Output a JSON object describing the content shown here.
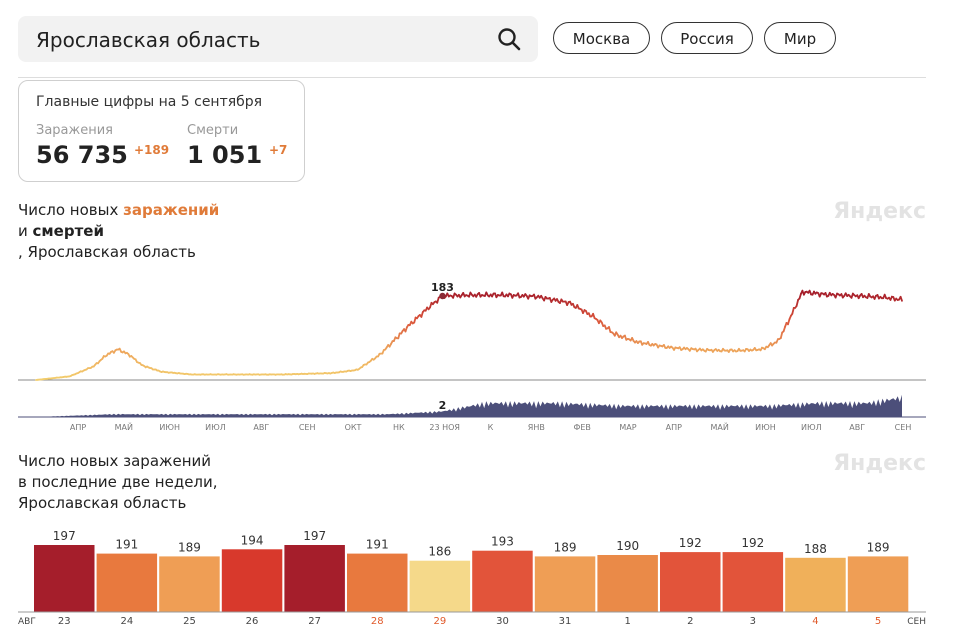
{
  "search": {
    "value": "Ярославская область"
  },
  "region_chips": [
    "Москва",
    "Россия",
    "Мир"
  ],
  "summary": {
    "title": "Главные цифры на 5 сентября",
    "infections_label": "Заражения",
    "infections_value": "56 735",
    "infections_delta": "+189",
    "deaths_label": "Смерти",
    "deaths_value": "1 051",
    "deaths_delta": "+7"
  },
  "chart1": {
    "title_prefix": "Число новых ",
    "title_infections": "заражений",
    "title_and": "и ",
    "title_deaths": "смертей",
    "title_region": ", Ярославская область",
    "watermark": "Яндекс"
  },
  "chart2": {
    "title_line1": "Число новых заражений",
    "title_line2": "в последние две недели,",
    "title_line3": "Ярославская область",
    "watermark": "Яндекс"
  },
  "chart_data": [
    {
      "type": "line",
      "series": [
        {
          "name": "заражений",
          "x": [
            "2020-03-15",
            "2020-04-05",
            "2020-04-20",
            "2020-04-28",
            "2020-05-05",
            "2020-05-12",
            "2020-05-20",
            "2020-06-01",
            "2020-06-20",
            "2020-07-15",
            "2020-08-15",
            "2020-09-15",
            "2020-10-01",
            "2020-10-15",
            "2020-11-01",
            "2020-11-15",
            "2020-11-23",
            "2020-12-10",
            "2021-01-01",
            "2021-01-20",
            "2021-02-10",
            "2021-02-25",
            "2021-03-10",
            "2021-03-25",
            "2021-04-15",
            "2021-05-05",
            "2021-05-25",
            "2021-06-10",
            "2021-06-20",
            "2021-06-28",
            "2021-07-05",
            "2021-07-20",
            "2021-08-10",
            "2021-08-25",
            "2021-09-05"
          ],
          "values": [
            0,
            8,
            30,
            55,
            67,
            55,
            32,
            18,
            12,
            12,
            12,
            15,
            22,
            55,
            115,
            160,
            183,
            185,
            185,
            182,
            168,
            138,
            100,
            82,
            70,
            65,
            64,
            67,
            85,
            140,
            192,
            186,
            183,
            180,
            175
          ]
        },
        {
          "name": "смертей",
          "x": [
            "2020-03-15",
            "2020-05-01",
            "2020-07-01",
            "2020-09-01",
            "2020-10-20",
            "2020-11-23",
            "2020-12-20",
            "2021-02-01",
            "2021-03-15",
            "2021-05-01",
            "2021-06-15",
            "2021-07-15",
            "2021-08-15",
            "2021-09-05"
          ],
          "values": [
            0,
            1,
            1,
            1,
            1,
            2,
            5,
            5,
            4,
            4,
            4,
            5,
            5,
            7
          ]
        }
      ],
      "annotations": [
        {
          "label": "183",
          "x": "2020-11-23",
          "series": "заражений"
        },
        {
          "label": "2",
          "x": "2020-11-23",
          "series": "смертей"
        }
      ],
      "x_tick_labels": [
        "АПР",
        "МАЙ",
        "ИЮН",
        "ИЮЛ",
        "АВГ",
        "СЕН",
        "ОКТ",
        "НК",
        "23 НОЯ",
        "К",
        "ЯНВ",
        "ФЕВ",
        "МАР",
        "АПР",
        "МАЙ",
        "ИЮН",
        "ИЮЛ",
        "АВГ",
        "СЕН"
      ],
      "grid": false
    },
    {
      "type": "bar",
      "categories": [
        "23",
        "24",
        "25",
        "26",
        "27",
        "28",
        "29",
        "30",
        "31",
        "1",
        "2",
        "3",
        "4",
        "5"
      ],
      "values": [
        197,
        191,
        189,
        194,
        197,
        191,
        186,
        193,
        189,
        190,
        192,
        192,
        188,
        189
      ],
      "month_labels": {
        "start": "АВГ",
        "end": "СЕН"
      },
      "colors": [
        "#a51e2b",
        "#e8793e",
        "#ef9e55",
        "#d8392c",
        "#a51e2b",
        "#e8793e",
        "#f5d98a",
        "#e2543a",
        "#ef9e55",
        "#ea8a48",
        "#e2543a",
        "#e2543a",
        "#f0b05a",
        "#ef9e55"
      ],
      "highlighted_labels": [
        "28",
        "29",
        "4",
        "5"
      ]
    }
  ]
}
